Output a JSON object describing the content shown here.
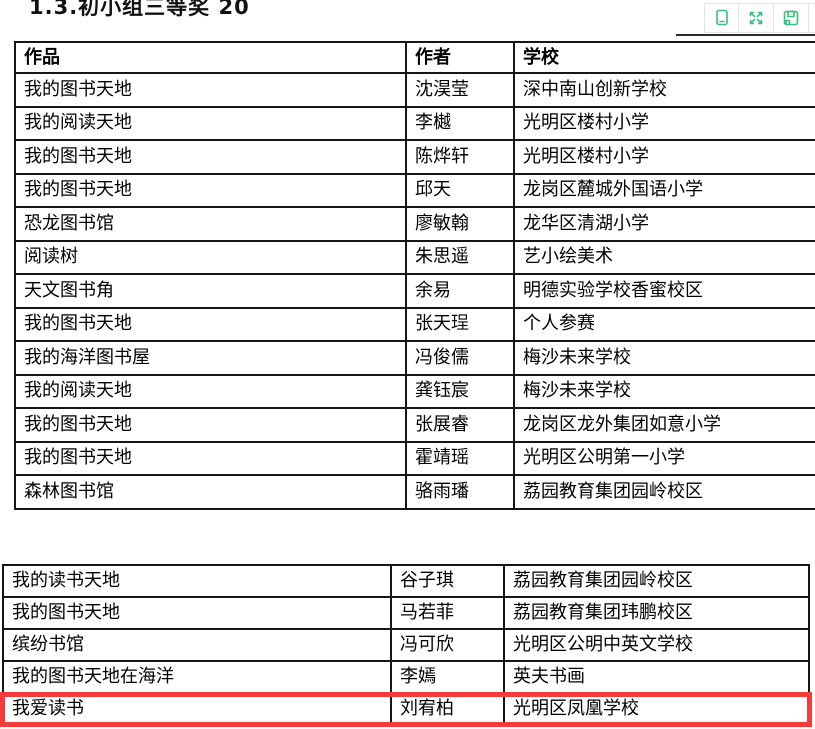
{
  "title": "1.3.初小组三等奖 20",
  "toolbar": {
    "icon_color": "#3abd7e",
    "buttons": [
      {
        "icon": "mobile-view-icon"
      },
      {
        "icon": "fullscreen-icon"
      },
      {
        "icon": "save-icon"
      },
      {
        "icon": "print-icon"
      }
    ]
  },
  "award_table": {
    "headers": {
      "work": "作品",
      "author": "作者",
      "school": "学校"
    },
    "rows": [
      {
        "work": "我的图书天地",
        "author": "沈淏莹",
        "school": "深中南山创新学校"
      },
      {
        "work": "我的阅读天地",
        "author": "李樾",
        "school": "光明区楼村小学"
      },
      {
        "work": "我的图书天地",
        "author": "陈烨轩",
        "school": "光明区楼村小学"
      },
      {
        "work": "我的图书天地",
        "author": "邱天",
        "school": "龙岗区麓城外国语小学"
      },
      {
        "work": "恐龙图书馆",
        "author": "廖敏翰",
        "school": "龙华区清湖小学"
      },
      {
        "work": "阅读树",
        "author": "朱思遥",
        "school": "艺小绘美术"
      },
      {
        "work": "天文图书角",
        "author": "余易",
        "school": "明德实验学校香蜜校区"
      },
      {
        "work": "我的图书天地",
        "author": "张天珵",
        "school": "个人参赛"
      },
      {
        "work": "我的海洋图书屋",
        "author": "冯俊儒",
        "school": "梅沙未来学校"
      },
      {
        "work": "我的阅读天地",
        "author": "龚钰宸",
        "school": "梅沙未来学校"
      },
      {
        "work": "我的图书天地",
        "author": "张展睿",
        "school": "龙岗区龙外集团如意小学"
      },
      {
        "work": "我的图书天地",
        "author": "霍靖瑶",
        "school": "光明区公明第一小学"
      },
      {
        "work": "森林图书馆",
        "author": "骆雨璠",
        "school": "荔园教育集团园岭校区"
      }
    ]
  },
  "award_table_continued": {
    "rows": [
      {
        "work": "我的读书天地",
        "author": "谷子琪",
        "school": "荔园教育集团园岭校区"
      },
      {
        "work": "我的图书天地",
        "author": "马若菲",
        "school": "荔园教育集团玮鹏校区"
      },
      {
        "work": "缤纷书馆",
        "author": "冯可欣",
        "school": "光明区公明中英文学校"
      },
      {
        "work": "我的图书天地在海洋",
        "author": "李嫣",
        "school": "英夫书画"
      },
      {
        "work": "我爱读书",
        "author": "刘宥柏",
        "school": "光明区凤凰学校",
        "highlighted": true
      }
    ]
  },
  "highlight": {
    "color": "#f53c3c"
  }
}
